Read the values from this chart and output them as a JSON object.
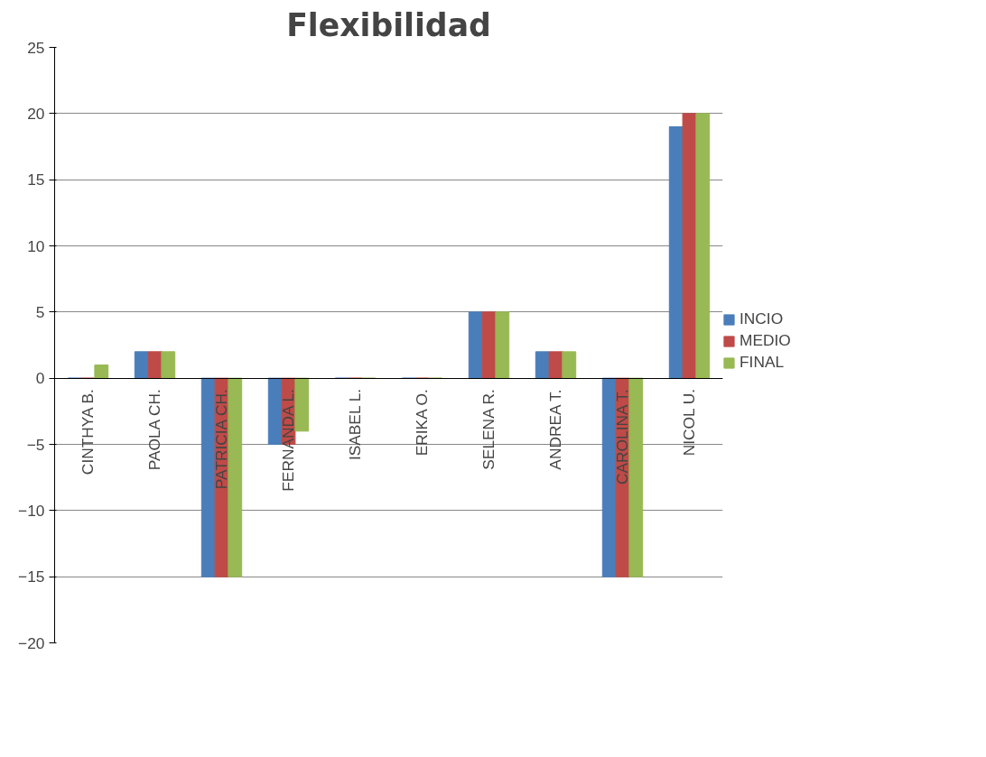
{
  "chart_data": {
    "type": "bar",
    "title": "Flexibilidad",
    "categories": [
      "CINTHYA B.",
      "PAOLA CH.",
      "PATRICIA CH.",
      "FERNANDA L.",
      "ISABEL L.",
      "ERIKA O.",
      "SELENA R.",
      "ANDREA T.",
      "CAROLINA T.",
      "NICOL U."
    ],
    "series": [
      {
        "name": "INCIO",
        "color": "#4a7ebb",
        "values": [
          0,
          2,
          -15,
          -5,
          0,
          0,
          5,
          2,
          -15,
          19
        ]
      },
      {
        "name": "MEDIO",
        "color": "#be4b48",
        "values": [
          0,
          2,
          -15,
          -5,
          0,
          0,
          5,
          2,
          -15,
          20
        ]
      },
      {
        "name": "FINAL",
        "color": "#98b954",
        "values": [
          1,
          2,
          -15,
          -4,
          0,
          0,
          5,
          2,
          -15,
          20
        ]
      }
    ],
    "ylim": [
      -20,
      25
    ],
    "yticks": [
      -20,
      -15,
      -10,
      -5,
      0,
      5,
      10,
      15,
      20,
      25
    ],
    "grid": "y",
    "legend": "right"
  }
}
